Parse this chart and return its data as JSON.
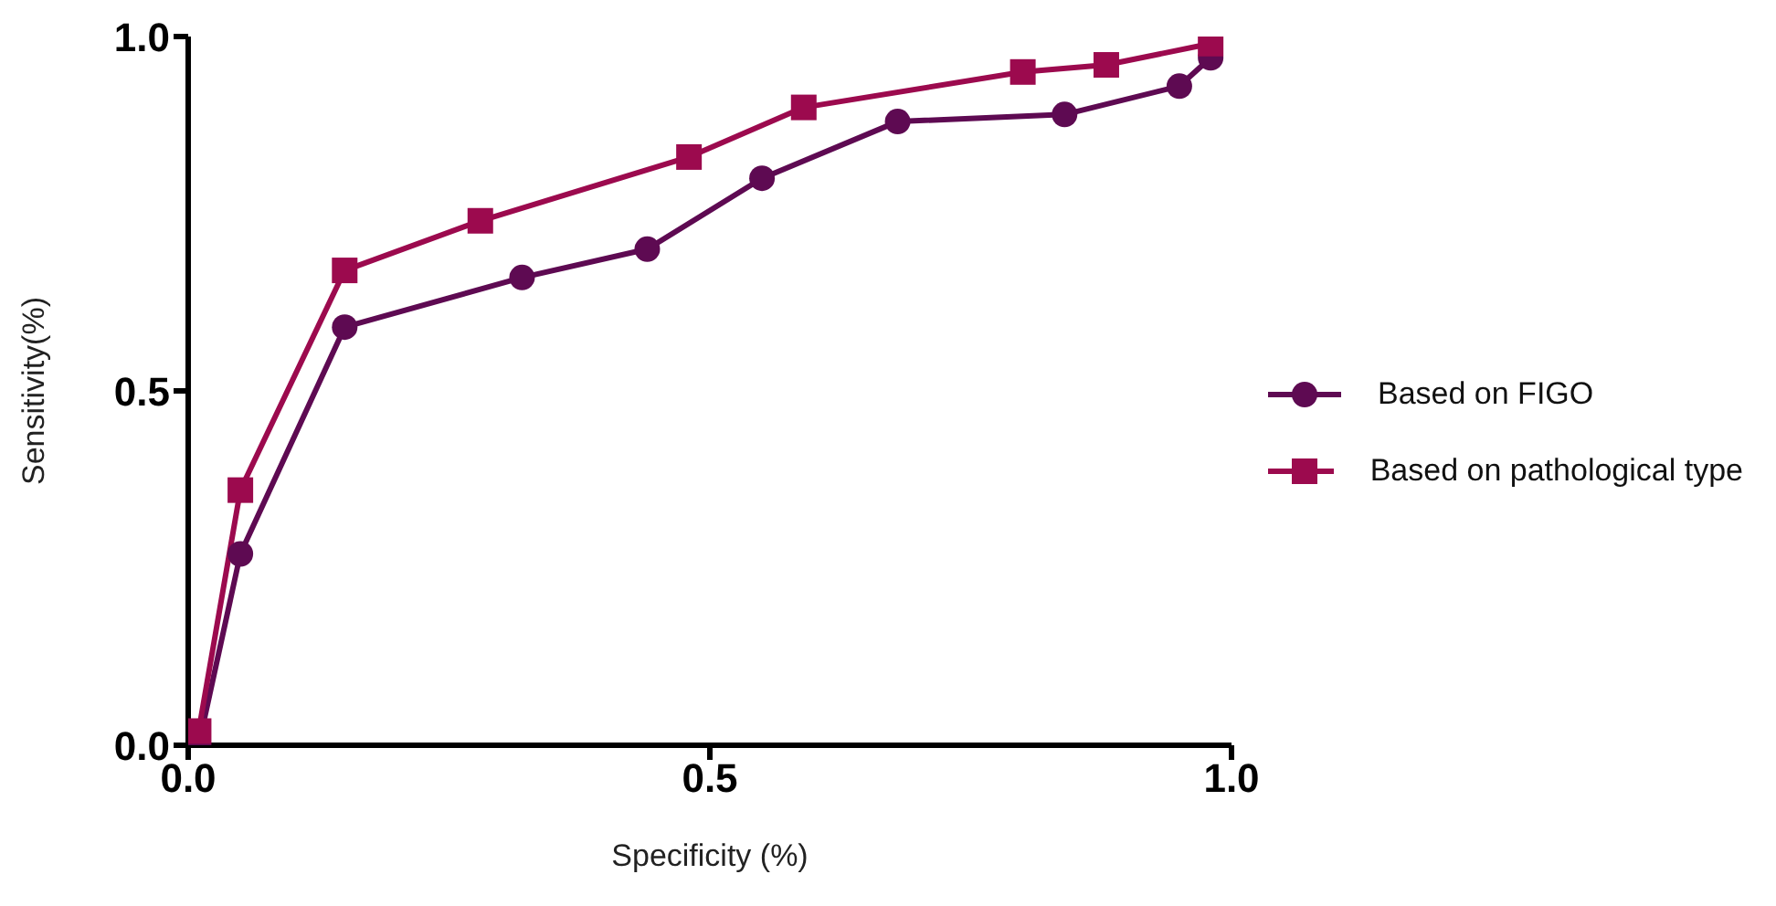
{
  "chart_data": {
    "type": "line",
    "xlabel": "Specificity (%)",
    "ylabel": "Sensitivity(%)",
    "xlim": [
      0,
      1
    ],
    "ylim": [
      0,
      1
    ],
    "xticks": [
      {
        "value": 0,
        "label": "0.0"
      },
      0.5,
      {
        "value": 1,
        "label": "1.0"
      }
    ],
    "yticks": [
      {
        "value": 0,
        "label": "0.0"
      },
      0.5,
      {
        "value": 1,
        "label": "1.0"
      }
    ],
    "grid": false,
    "legend": "right",
    "line_style": "solid",
    "series": [
      {
        "name": "Based on FIGO",
        "color": "#5e0a52",
        "marker": "circle",
        "x": [
          0.01,
          0.05,
          0.15,
          0.32,
          0.44,
          0.55,
          0.68,
          0.84,
          0.95,
          0.98
        ],
        "values": [
          0.0,
          0.27,
          0.59,
          0.66,
          0.7,
          0.8,
          0.88,
          0.89,
          0.93,
          0.97
        ]
      },
      {
        "name": "Based on pathological type",
        "color": "#9c0a4e",
        "marker": "square",
        "x": [
          0.01,
          0.05,
          0.15,
          0.28,
          0.48,
          0.59,
          0.8,
          0.88,
          0.98
        ],
        "values": [
          0.02,
          0.36,
          0.67,
          0.74,
          0.83,
          0.9,
          0.95,
          0.96,
          0.99
        ]
      }
    ]
  }
}
